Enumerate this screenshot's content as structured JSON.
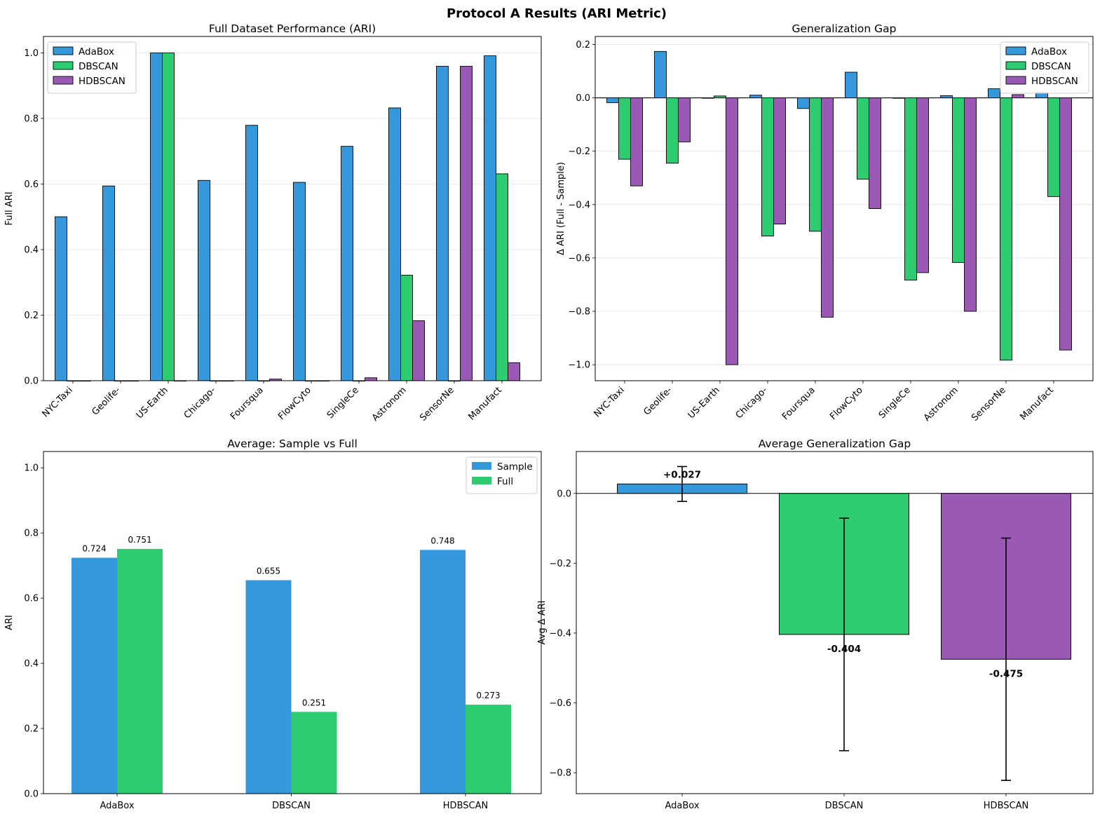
{
  "figure": {
    "title": "Protocol A Results (ARI Metric)"
  },
  "colors": {
    "AdaBox": "#3498db",
    "DBSCAN": "#2ecc71",
    "HDBSCAN": "#9b59b6",
    "edge": "#000000"
  },
  "chart_data": [
    {
      "id": "full",
      "type": "bar",
      "title": "Full Dataset Performance (ARI)",
      "xlabel": "",
      "ylabel": "Full ARI",
      "ylim": [
        0,
        1.05
      ],
      "yticks": [
        0.0,
        0.2,
        0.4,
        0.6,
        0.8,
        1.0
      ],
      "grid": true,
      "legend": "top-left",
      "categories": [
        "NYC-Taxi",
        "Geolife-",
        "US-Earth",
        "Chicago-",
        "Foursqua",
        "FlowCyto",
        "SingleCe",
        "Astronom",
        "SensorNe",
        "Manufact"
      ],
      "series": [
        {
          "name": "AdaBox",
          "values": [
            0.5,
            0.594,
            1.0,
            0.611,
            0.779,
            0.605,
            0.715,
            0.832,
            0.959,
            0.991
          ]
        },
        {
          "name": "DBSCAN",
          "values": [
            0.0,
            0.0,
            1.0,
            0.0,
            0.0,
            0.0,
            0.0,
            0.322,
            0.0,
            0.631
          ]
        },
        {
          "name": "HDBSCAN",
          "values": [
            0.0,
            0.0,
            0.0,
            0.0,
            0.005,
            0.0,
            0.009,
            0.183,
            0.959,
            0.055
          ]
        }
      ]
    },
    {
      "id": "gap",
      "type": "bar",
      "title": "Generalization Gap",
      "xlabel": "",
      "ylabel": "Δ ARI (Full - Sample)",
      "ylim": [
        -1.06,
        0.23
      ],
      "yticks": [
        -1.0,
        -0.8,
        -0.6,
        -0.4,
        -0.2,
        0.0,
        0.2
      ],
      "grid": true,
      "legend": "top-right",
      "categories": [
        "NYC-Taxi",
        "Geolife-",
        "US-Earth",
        "Chicago-",
        "Foursqua",
        "FlowCyto",
        "SingleCe",
        "Astronom",
        "SensorNe",
        "Manufact"
      ],
      "series": [
        {
          "name": "AdaBox",
          "values": [
            -0.018,
            0.174,
            0.0,
            0.01,
            -0.04,
            0.096,
            0.0,
            0.008,
            0.034,
            0.02
          ]
        },
        {
          "name": "DBSCAN",
          "values": [
            -0.23,
            -0.245,
            0.007,
            -0.518,
            -0.5,
            -0.305,
            -0.683,
            -0.617,
            -0.983,
            -0.37
          ]
        },
        {
          "name": "HDBSCAN",
          "values": [
            -0.33,
            -0.165,
            -1.0,
            -0.473,
            -0.822,
            -0.415,
            -0.655,
            -0.8,
            0.012,
            -0.945
          ]
        }
      ]
    },
    {
      "id": "avg",
      "type": "bar",
      "title": "Average: Sample vs Full",
      "xlabel": "",
      "ylabel": "ARI",
      "ylim": [
        0,
        1.05
      ],
      "yticks": [
        0.0,
        0.2,
        0.4,
        0.6,
        0.8,
        1.0
      ],
      "grid": false,
      "legend": "top-right",
      "categories": [
        "AdaBox",
        "DBSCAN",
        "HDBSCAN"
      ],
      "series": [
        {
          "name": "Sample",
          "color": "#3498db",
          "values": [
            0.724,
            0.655,
            0.748
          ],
          "labels": [
            "0.724",
            "0.655",
            "0.748"
          ]
        },
        {
          "name": "Full",
          "color": "#2ecc71",
          "values": [
            0.751,
            0.251,
            0.273
          ],
          "labels": [
            "0.751",
            "0.251",
            "0.273"
          ]
        }
      ]
    },
    {
      "id": "avggap",
      "type": "bar",
      "title": "Average Generalization Gap",
      "xlabel": "",
      "ylabel": "Avg Δ ARI",
      "ylim": [
        -0.86,
        0.12
      ],
      "yticks": [
        -0.8,
        -0.6,
        -0.4,
        -0.2,
        0.0
      ],
      "grid": false,
      "categories": [
        "AdaBox",
        "DBSCAN",
        "HDBSCAN"
      ],
      "values": [
        0.027,
        -0.404,
        -0.475
      ],
      "errors": [
        0.05,
        0.333,
        0.347
      ],
      "labels": [
        "+0.027",
        "-0.404",
        "-0.475"
      ]
    }
  ]
}
